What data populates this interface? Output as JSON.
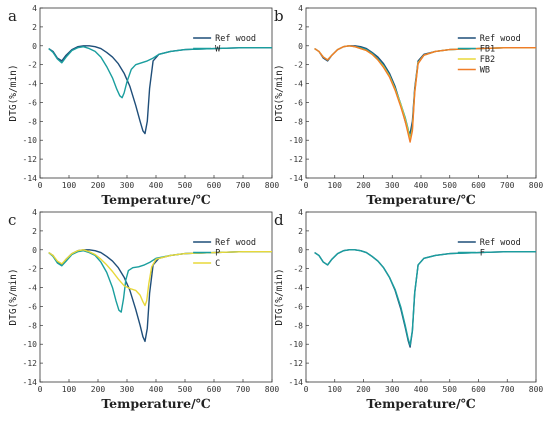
{
  "chart_data": [
    {
      "type": "line",
      "panel_label": "a",
      "xlabel": "Temperature/℃",
      "ylabel": "DTG(%/min)",
      "xlim": [
        0,
        800
      ],
      "ylim": [
        -14,
        4
      ],
      "xticks": [
        0,
        100,
        200,
        300,
        400,
        500,
        600,
        700,
        800
      ],
      "yticks": [
        4,
        2,
        0,
        -2,
        -4,
        -6,
        -8,
        -10,
        -12,
        -14
      ],
      "legend_position": "right",
      "series": [
        {
          "name": "Ref wood",
          "color": "#1f4e79",
          "x": [
            30,
            45,
            60,
            75,
            90,
            110,
            130,
            150,
            170,
            190,
            210,
            230,
            250,
            270,
            290,
            310,
            330,
            345,
            355,
            362,
            370,
            378,
            390,
            410,
            450,
            500,
            600,
            700,
            800
          ],
          "y": [
            -0.3,
            -0.6,
            -1.3,
            -1.6,
            -1.0,
            -0.4,
            -0.1,
            0.0,
            0.0,
            -0.1,
            -0.3,
            -0.7,
            -1.2,
            -1.9,
            -2.9,
            -4.3,
            -6.3,
            -8.0,
            -9.0,
            -9.3,
            -8.0,
            -4.5,
            -1.6,
            -0.9,
            -0.6,
            -0.4,
            -0.3,
            -0.2,
            -0.2
          ]
        },
        {
          "name": "W",
          "color": "#1a9e9e",
          "x": [
            30,
            45,
            60,
            75,
            90,
            110,
            130,
            150,
            170,
            190,
            210,
            230,
            250,
            265,
            275,
            283,
            290,
            300,
            315,
            330,
            350,
            370,
            390,
            410,
            450,
            500,
            600,
            700,
            800
          ],
          "y": [
            -0.3,
            -0.7,
            -1.4,
            -1.8,
            -1.2,
            -0.5,
            -0.2,
            -0.1,
            -0.3,
            -0.6,
            -1.2,
            -2.2,
            -3.4,
            -4.6,
            -5.3,
            -5.5,
            -5.0,
            -3.8,
            -2.5,
            -2.0,
            -1.8,
            -1.6,
            -1.3,
            -0.9,
            -0.6,
            -0.4,
            -0.3,
            -0.2,
            -0.2
          ]
        }
      ]
    },
    {
      "type": "line",
      "panel_label": "b",
      "xlabel": "Temperature/℃",
      "ylabel": "DTG(%/min)",
      "xlim": [
        0,
        800
      ],
      "ylim": [
        -14,
        4
      ],
      "xticks": [
        0,
        100,
        200,
        300,
        400,
        500,
        600,
        700,
        800
      ],
      "yticks": [
        4,
        2,
        0,
        -2,
        -4,
        -6,
        -8,
        -10,
        -12,
        -14
      ],
      "legend_position": "right",
      "series": [
        {
          "name": "Ref wood",
          "color": "#1f4e79",
          "x": [
            30,
            45,
            60,
            75,
            90,
            110,
            130,
            150,
            170,
            190,
            210,
            230,
            250,
            270,
            290,
            310,
            330,
            345,
            355,
            362,
            370,
            378,
            390,
            410,
            450,
            500,
            600,
            700,
            800
          ],
          "y": [
            -0.3,
            -0.6,
            -1.3,
            -1.6,
            -1.0,
            -0.4,
            -0.1,
            0.0,
            0.0,
            -0.1,
            -0.3,
            -0.7,
            -1.2,
            -1.9,
            -2.9,
            -4.3,
            -6.3,
            -8.0,
            -9.0,
            -9.3,
            -8.0,
            -4.5,
            -1.6,
            -0.9,
            -0.6,
            -0.4,
            -0.3,
            -0.2,
            -0.2
          ]
        },
        {
          "name": "FB1",
          "color": "#1a9e9e",
          "x": [
            30,
            45,
            60,
            75,
            90,
            110,
            130,
            150,
            170,
            190,
            210,
            230,
            250,
            270,
            290,
            310,
            330,
            345,
            355,
            362,
            370,
            378,
            390,
            410,
            450,
            500,
            600,
            700,
            800
          ],
          "y": [
            -0.3,
            -0.6,
            -1.2,
            -1.5,
            -1.0,
            -0.4,
            -0.1,
            0.0,
            -0.1,
            -0.2,
            -0.4,
            -0.8,
            -1.4,
            -2.1,
            -3.1,
            -4.5,
            -6.2,
            -7.6,
            -8.8,
            -9.8,
            -8.6,
            -4.8,
            -1.8,
            -1.0,
            -0.6,
            -0.4,
            -0.3,
            -0.2,
            -0.2
          ]
        },
        {
          "name": "FB2",
          "color": "#e8d83a",
          "x": [
            30,
            45,
            60,
            75,
            90,
            110,
            130,
            150,
            170,
            190,
            210,
            230,
            250,
            270,
            290,
            310,
            330,
            345,
            355,
            362,
            370,
            378,
            390,
            410,
            450,
            500,
            600,
            700,
            800
          ],
          "y": [
            -0.3,
            -0.6,
            -1.2,
            -1.5,
            -1.0,
            -0.4,
            -0.1,
            0.0,
            -0.1,
            -0.3,
            -0.5,
            -0.9,
            -1.5,
            -2.2,
            -3.2,
            -4.6,
            -6.3,
            -7.8,
            -9.0,
            -10.0,
            -8.8,
            -4.9,
            -1.8,
            -1.0,
            -0.6,
            -0.4,
            -0.3,
            -0.2,
            -0.2
          ]
        },
        {
          "name": "WB",
          "color": "#f07c28",
          "x": [
            30,
            45,
            60,
            75,
            90,
            110,
            130,
            150,
            170,
            190,
            210,
            230,
            250,
            270,
            290,
            310,
            330,
            345,
            355,
            362,
            370,
            378,
            390,
            410,
            450,
            500,
            600,
            700,
            800
          ],
          "y": [
            -0.3,
            -0.6,
            -1.2,
            -1.5,
            -1.0,
            -0.4,
            -0.1,
            0.0,
            -0.1,
            -0.3,
            -0.5,
            -0.9,
            -1.5,
            -2.3,
            -3.3,
            -4.7,
            -6.5,
            -8.0,
            -9.3,
            -10.2,
            -9.0,
            -5.0,
            -1.9,
            -1.0,
            -0.6,
            -0.4,
            -0.3,
            -0.2,
            -0.2
          ]
        }
      ]
    },
    {
      "type": "line",
      "panel_label": "c",
      "xlabel": "Temperature/℃",
      "ylabel": "DTG(%/min)",
      "xlim": [
        0,
        800
      ],
      "ylim": [
        -14,
        4
      ],
      "xticks": [
        0,
        100,
        200,
        300,
        400,
        500,
        600,
        700,
        800
      ],
      "yticks": [
        4,
        2,
        0,
        -2,
        -4,
        -6,
        -8,
        -10,
        -12,
        -14
      ],
      "legend_position": "right",
      "series": [
        {
          "name": "Ref wood",
          "color": "#1f4e79",
          "x": [
            30,
            45,
            60,
            75,
            90,
            110,
            130,
            150,
            170,
            190,
            210,
            230,
            250,
            270,
            290,
            310,
            330,
            345,
            355,
            362,
            370,
            378,
            390,
            410,
            450,
            500,
            600,
            700,
            800
          ],
          "y": [
            -0.3,
            -0.6,
            -1.3,
            -1.6,
            -1.0,
            -0.4,
            -0.1,
            0.0,
            0.0,
            -0.1,
            -0.3,
            -0.7,
            -1.2,
            -1.9,
            -2.9,
            -4.3,
            -6.3,
            -8.0,
            -9.2,
            -9.7,
            -8.3,
            -4.6,
            -1.6,
            -0.9,
            -0.6,
            -0.4,
            -0.3,
            -0.2,
            -0.2
          ]
        },
        {
          "name": "P",
          "color": "#1a9e9e",
          "x": [
            30,
            45,
            60,
            75,
            90,
            110,
            130,
            150,
            170,
            190,
            210,
            230,
            250,
            262,
            272,
            280,
            288,
            296,
            305,
            320,
            340,
            360,
            380,
            400,
            450,
            500,
            600,
            700,
            800
          ],
          "y": [
            -0.3,
            -0.7,
            -1.4,
            -1.7,
            -1.2,
            -0.5,
            -0.2,
            -0.1,
            -0.3,
            -0.6,
            -1.3,
            -2.4,
            -4.0,
            -5.4,
            -6.4,
            -6.6,
            -5.2,
            -3.2,
            -2.2,
            -1.9,
            -1.8,
            -1.6,
            -1.3,
            -0.9,
            -0.6,
            -0.4,
            -0.3,
            -0.2,
            -0.2
          ]
        },
        {
          "name": "C",
          "color": "#e8d83a",
          "x": [
            30,
            45,
            60,
            75,
            90,
            110,
            130,
            150,
            170,
            190,
            210,
            230,
            250,
            270,
            290,
            310,
            330,
            345,
            355,
            362,
            368,
            375,
            385,
            400,
            450,
            500,
            600,
            700,
            800
          ],
          "y": [
            -0.3,
            -0.6,
            -1.2,
            -1.5,
            -1.0,
            -0.4,
            -0.1,
            0.0,
            -0.2,
            -0.5,
            -1.0,
            -1.6,
            -2.3,
            -3.1,
            -3.8,
            -4.1,
            -4.3,
            -4.8,
            -5.5,
            -5.9,
            -5.4,
            -3.6,
            -1.8,
            -1.0,
            -0.6,
            -0.4,
            -0.3,
            -0.2,
            -0.2
          ]
        }
      ]
    },
    {
      "type": "line",
      "panel_label": "d",
      "xlabel": "Temperature/℃",
      "ylabel": "DTG(%/min)",
      "xlim": [
        0,
        800
      ],
      "ylim": [
        -14,
        4
      ],
      "xticks": [
        0,
        100,
        200,
        300,
        400,
        500,
        600,
        700,
        800
      ],
      "yticks": [
        4,
        2,
        0,
        -2,
        -4,
        -6,
        -8,
        -10,
        -12,
        -14
      ],
      "legend_position": "right",
      "series": [
        {
          "name": "Ref wood",
          "color": "#1f4e79",
          "x": [
            30,
            45,
            60,
            75,
            90,
            110,
            130,
            150,
            170,
            190,
            210,
            230,
            250,
            270,
            290,
            310,
            330,
            345,
            355,
            362,
            370,
            378,
            390,
            410,
            450,
            500,
            600,
            700,
            800
          ],
          "y": [
            -0.3,
            -0.6,
            -1.3,
            -1.6,
            -1.0,
            -0.4,
            -0.1,
            0.0,
            0.0,
            -0.1,
            -0.3,
            -0.7,
            -1.2,
            -1.9,
            -2.9,
            -4.3,
            -6.3,
            -8.2,
            -9.6,
            -10.3,
            -8.6,
            -4.6,
            -1.6,
            -0.9,
            -0.6,
            -0.4,
            -0.3,
            -0.2,
            -0.2
          ]
        },
        {
          "name": "F",
          "color": "#1a9e9e",
          "x": [
            30,
            45,
            60,
            75,
            90,
            110,
            130,
            150,
            170,
            190,
            210,
            230,
            250,
            270,
            290,
            310,
            330,
            345,
            355,
            362,
            370,
            378,
            390,
            410,
            450,
            500,
            600,
            700,
            800
          ],
          "y": [
            -0.3,
            -0.6,
            -1.3,
            -1.6,
            -1.0,
            -0.4,
            -0.1,
            0.0,
            0.0,
            -0.1,
            -0.3,
            -0.7,
            -1.2,
            -1.9,
            -2.9,
            -4.2,
            -6.1,
            -8.0,
            -9.4,
            -10.1,
            -8.5,
            -4.5,
            -1.6,
            -0.9,
            -0.6,
            -0.4,
            -0.3,
            -0.2,
            -0.2
          ]
        }
      ]
    }
  ]
}
